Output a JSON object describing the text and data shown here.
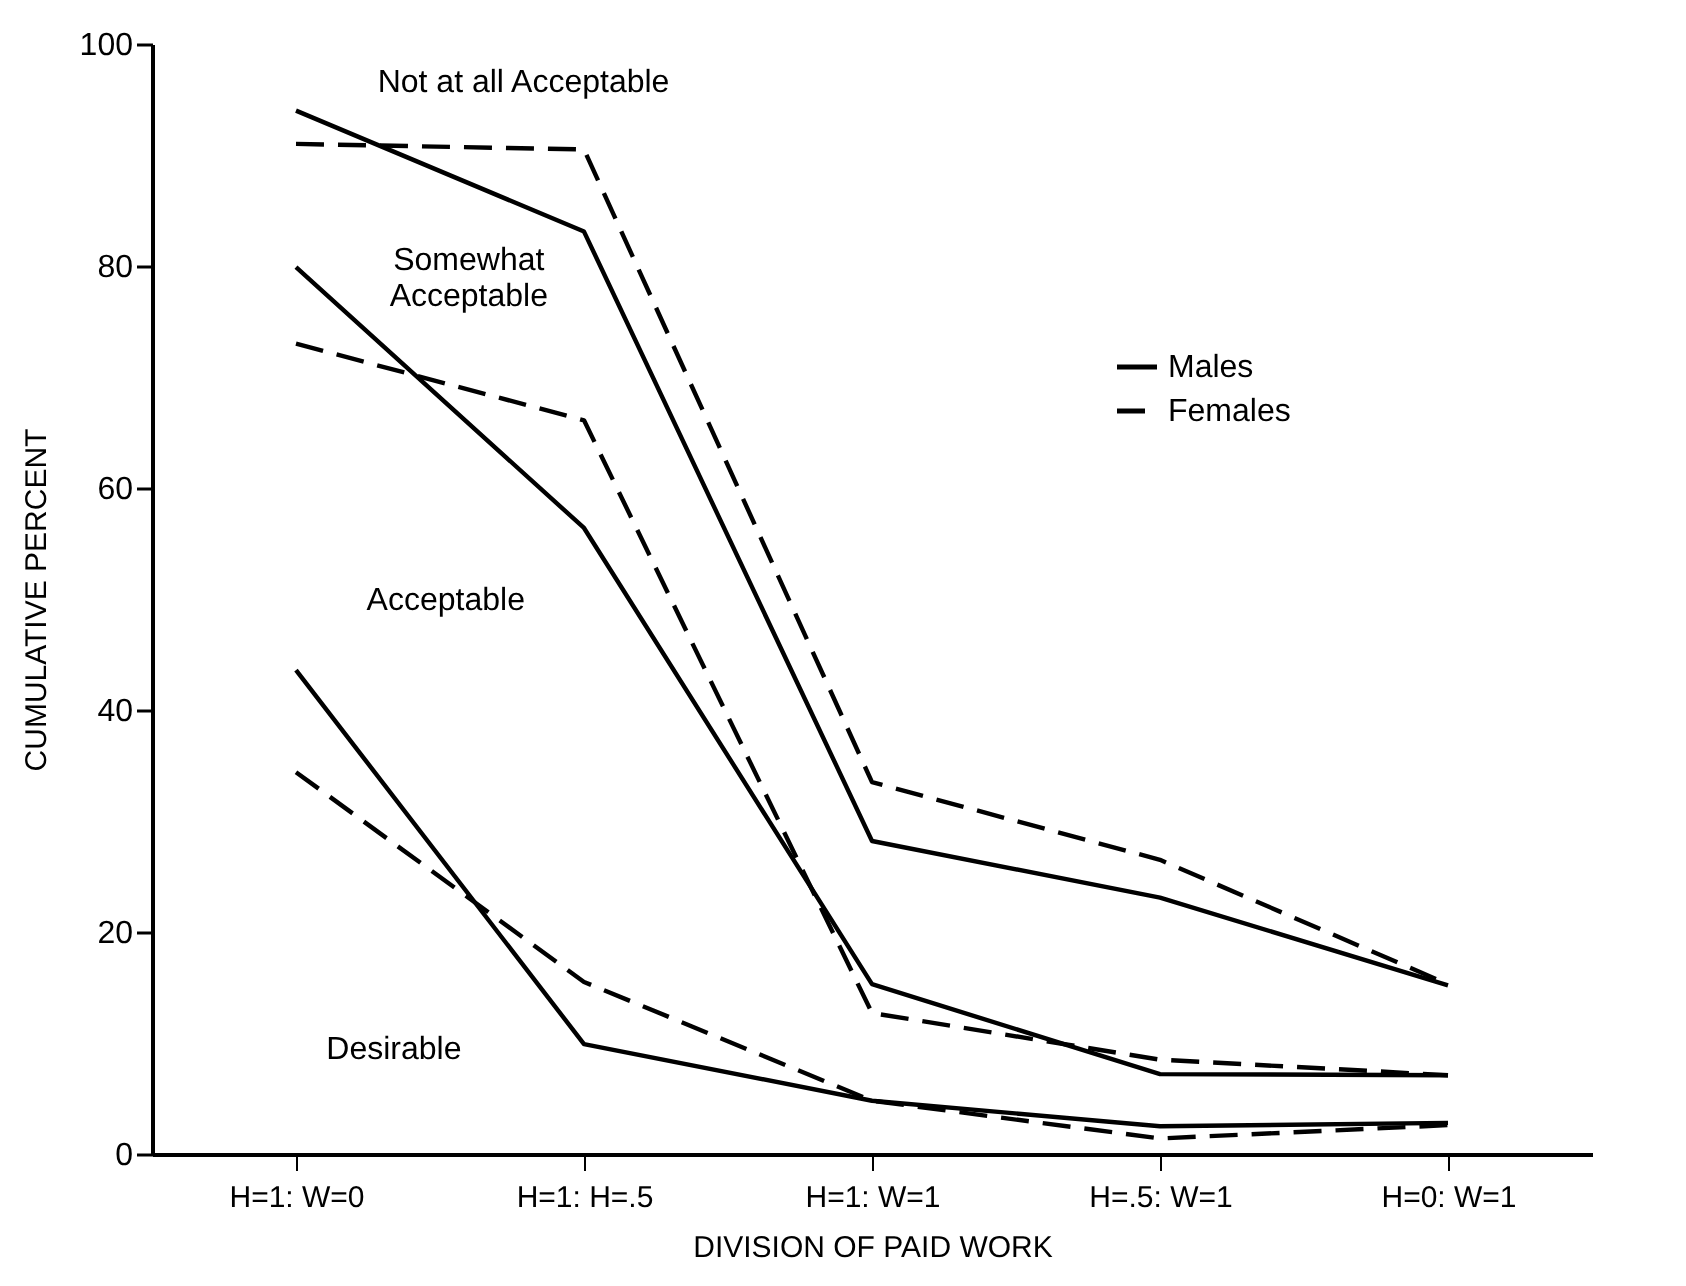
{
  "chart_data": {
    "type": "line",
    "xlabel": "DIVISION OF PAID WORK",
    "ylabel": "CUMULATIVE PERCENT",
    "categories": [
      "H=1: W=0",
      "H=1: H=.5",
      "H=1: W=1",
      "H=.5: W=1",
      "H=0: W=1"
    ],
    "series": [
      {
        "name": "Males",
        "color": "#000000",
        "line_style": "solid",
        "values": [
          94.0,
          83.1,
          28.2,
          23.1,
          15.2
        ]
      },
      {
        "name": "Females",
        "color": "#000000",
        "line_style": "dashed",
        "values": [
          91.0,
          90.5,
          33.5,
          26.5,
          15.3
        ]
      },
      {
        "color": "#000000",
        "line_style": "solid",
        "values": [
          79.9,
          56.4,
          15.3,
          7.2,
          7.1
        ]
      },
      {
        "color": "#000000",
        "line_style": "dashed",
        "values": [
          73.0,
          66.1,
          12.7,
          8.5,
          7.1
        ]
      },
      {
        "color": "#000000",
        "line_style": "solid",
        "values": [
          43.6,
          9.9,
          4.8,
          2.5,
          2.8
        ]
      },
      {
        "color": "#000000",
        "line_style": "dashed",
        "values": [
          34.4,
          15.5,
          4.8,
          1.4,
          2.6
        ]
      }
    ],
    "annotations": [
      "Not at all Acceptable",
      "Somewhat\nAcceptable",
      "Acceptable",
      "Desirable"
    ],
    "ylim": [
      0,
      100
    ],
    "yticks": [
      0,
      20,
      40,
      60,
      80,
      100
    ],
    "grid": false,
    "legend": "top right",
    "marker": "none"
  }
}
